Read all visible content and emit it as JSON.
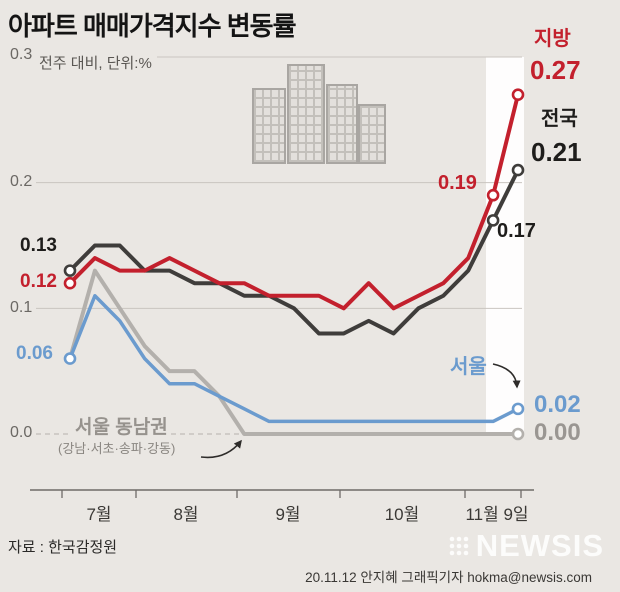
{
  "header": {
    "title": "아파트 매매가격지수 변동률",
    "subtitle": "전주 대비, 단위:%"
  },
  "chart_data": {
    "type": "line",
    "title": "아파트 매매가격지수 변동률",
    "unit_note": "전주 대비, 단위:%",
    "x_categories": [
      "7월",
      "8월",
      "9월",
      "10월",
      "11월 9일"
    ],
    "y_ticks": [
      "0.3",
      "0.2",
      "0.1",
      "0.0"
    ],
    "y_tick_values": [
      0.3,
      0.2,
      0.1,
      0.0
    ],
    "ylim": [
      0,
      0.3
    ],
    "grid": true,
    "series": [
      {
        "name": "지방",
        "color": "#c3202d",
        "width": 4,
        "values": [
          0.12,
          0.14,
          0.13,
          0.13,
          0.14,
          0.13,
          0.12,
          0.12,
          0.11,
          0.11,
          0.11,
          0.1,
          0.12,
          0.1,
          0.11,
          0.12,
          0.14,
          0.19,
          0.27
        ],
        "markers": [
          0,
          17,
          18
        ],
        "labels": {
          "start": "0.12",
          "mid": "0.19",
          "end": "0.27"
        }
      },
      {
        "name": "전국",
        "color": "#3f3d3b",
        "width": 4,
        "values": [
          0.13,
          0.15,
          0.15,
          0.13,
          0.13,
          0.12,
          0.12,
          0.11,
          0.11,
          0.1,
          0.08,
          0.08,
          0.09,
          0.08,
          0.1,
          0.11,
          0.13,
          0.17,
          0.21
        ],
        "markers": [
          0,
          17,
          18
        ],
        "labels": {
          "start": "0.13",
          "mid": "0.17",
          "end": "0.21"
        }
      },
      {
        "name": "서울",
        "color": "#6b9bce",
        "width": 3.5,
        "values": [
          0.06,
          0.11,
          0.09,
          0.06,
          0.04,
          0.04,
          0.03,
          0.02,
          0.01,
          0.01,
          0.01,
          0.01,
          0.01,
          0.01,
          0.01,
          0.01,
          0.01,
          0.01,
          0.02
        ],
        "markers": [
          0,
          18
        ],
        "labels": {
          "start": "0.06",
          "end": "0.02"
        }
      },
      {
        "name": "서울 동남권",
        "color": "#b3b0ac",
        "width": 4,
        "values": [
          0.06,
          0.13,
          0.1,
          0.07,
          0.05,
          0.05,
          0.03,
          0.0,
          0.0,
          0.0,
          0.0,
          0.0,
          0.0,
          0.0,
          0.0,
          0.0,
          0.0,
          0.0,
          0.0
        ],
        "markers": [
          18
        ],
        "labels": {
          "sub": "(강남·서초·송파·강동)",
          "end": "0.00"
        }
      }
    ]
  },
  "footer": {
    "source": "자료 : 한국감정원",
    "credit": "20.11.12 안지혜 그래픽기자 hokma@newsis.com",
    "watermark": "NEWSIS"
  }
}
